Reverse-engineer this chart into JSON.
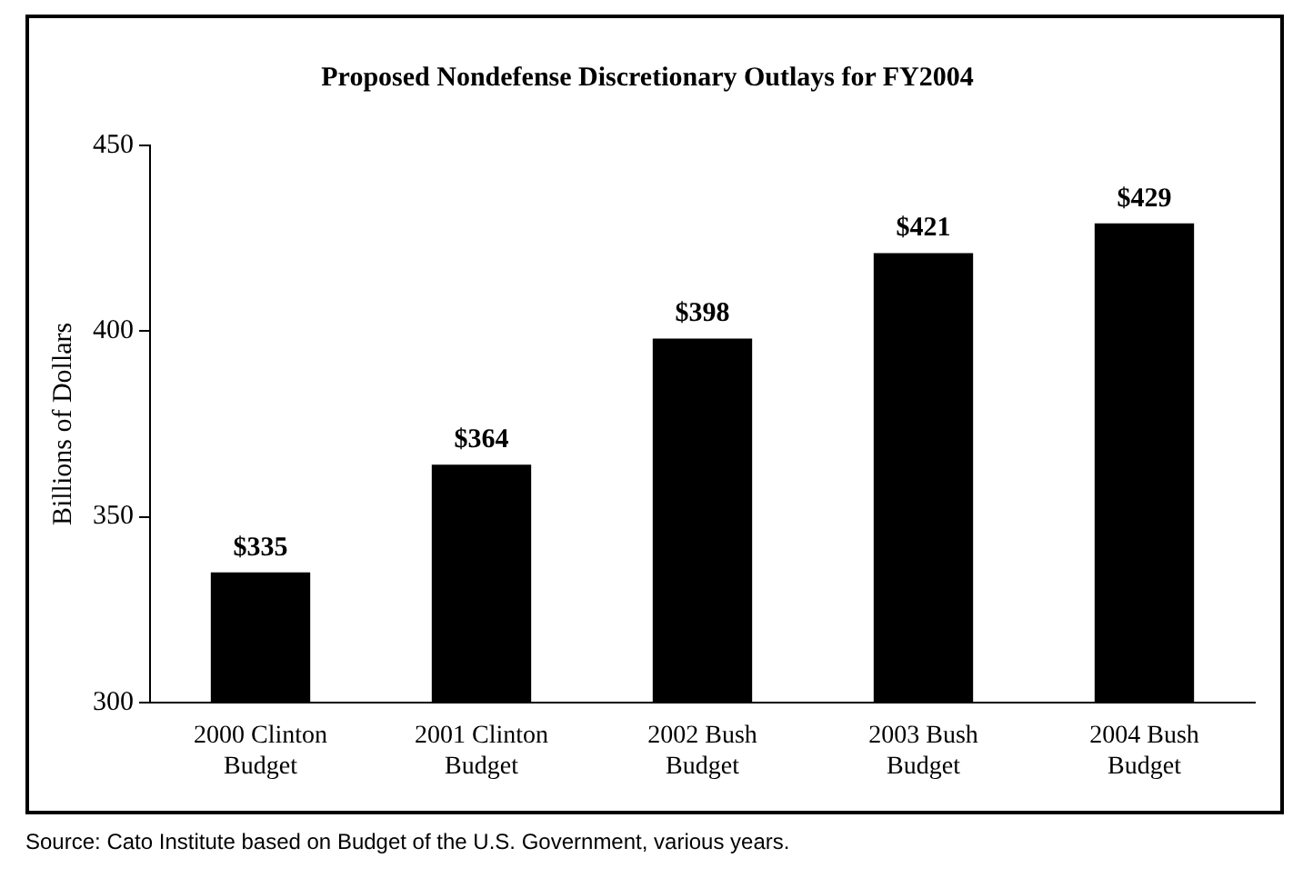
{
  "chart_data": {
    "type": "bar",
    "title": "Proposed Nondefense Discretionary Outlays for FY2004",
    "ylabel": "Billions of Dollars",
    "categories": [
      "2000 Clinton\nBudget",
      "2001 Clinton\nBudget",
      "2002 Bush\nBudget",
      "2003 Bush\nBudget",
      "2004 Bush\nBudget"
    ],
    "values": [
      335,
      364,
      398,
      421,
      429
    ],
    "value_labels": [
      "$335",
      "$364",
      "$398",
      "$421",
      "$429"
    ],
    "color": "#000000",
    "ylim": [
      300,
      450
    ],
    "yticks": [
      300,
      350,
      400,
      450
    ],
    "grid": false,
    "legend": false,
    "annotations": [
      "Source: Cato Institute based on Budget of the U.S. Government, various years."
    ]
  }
}
